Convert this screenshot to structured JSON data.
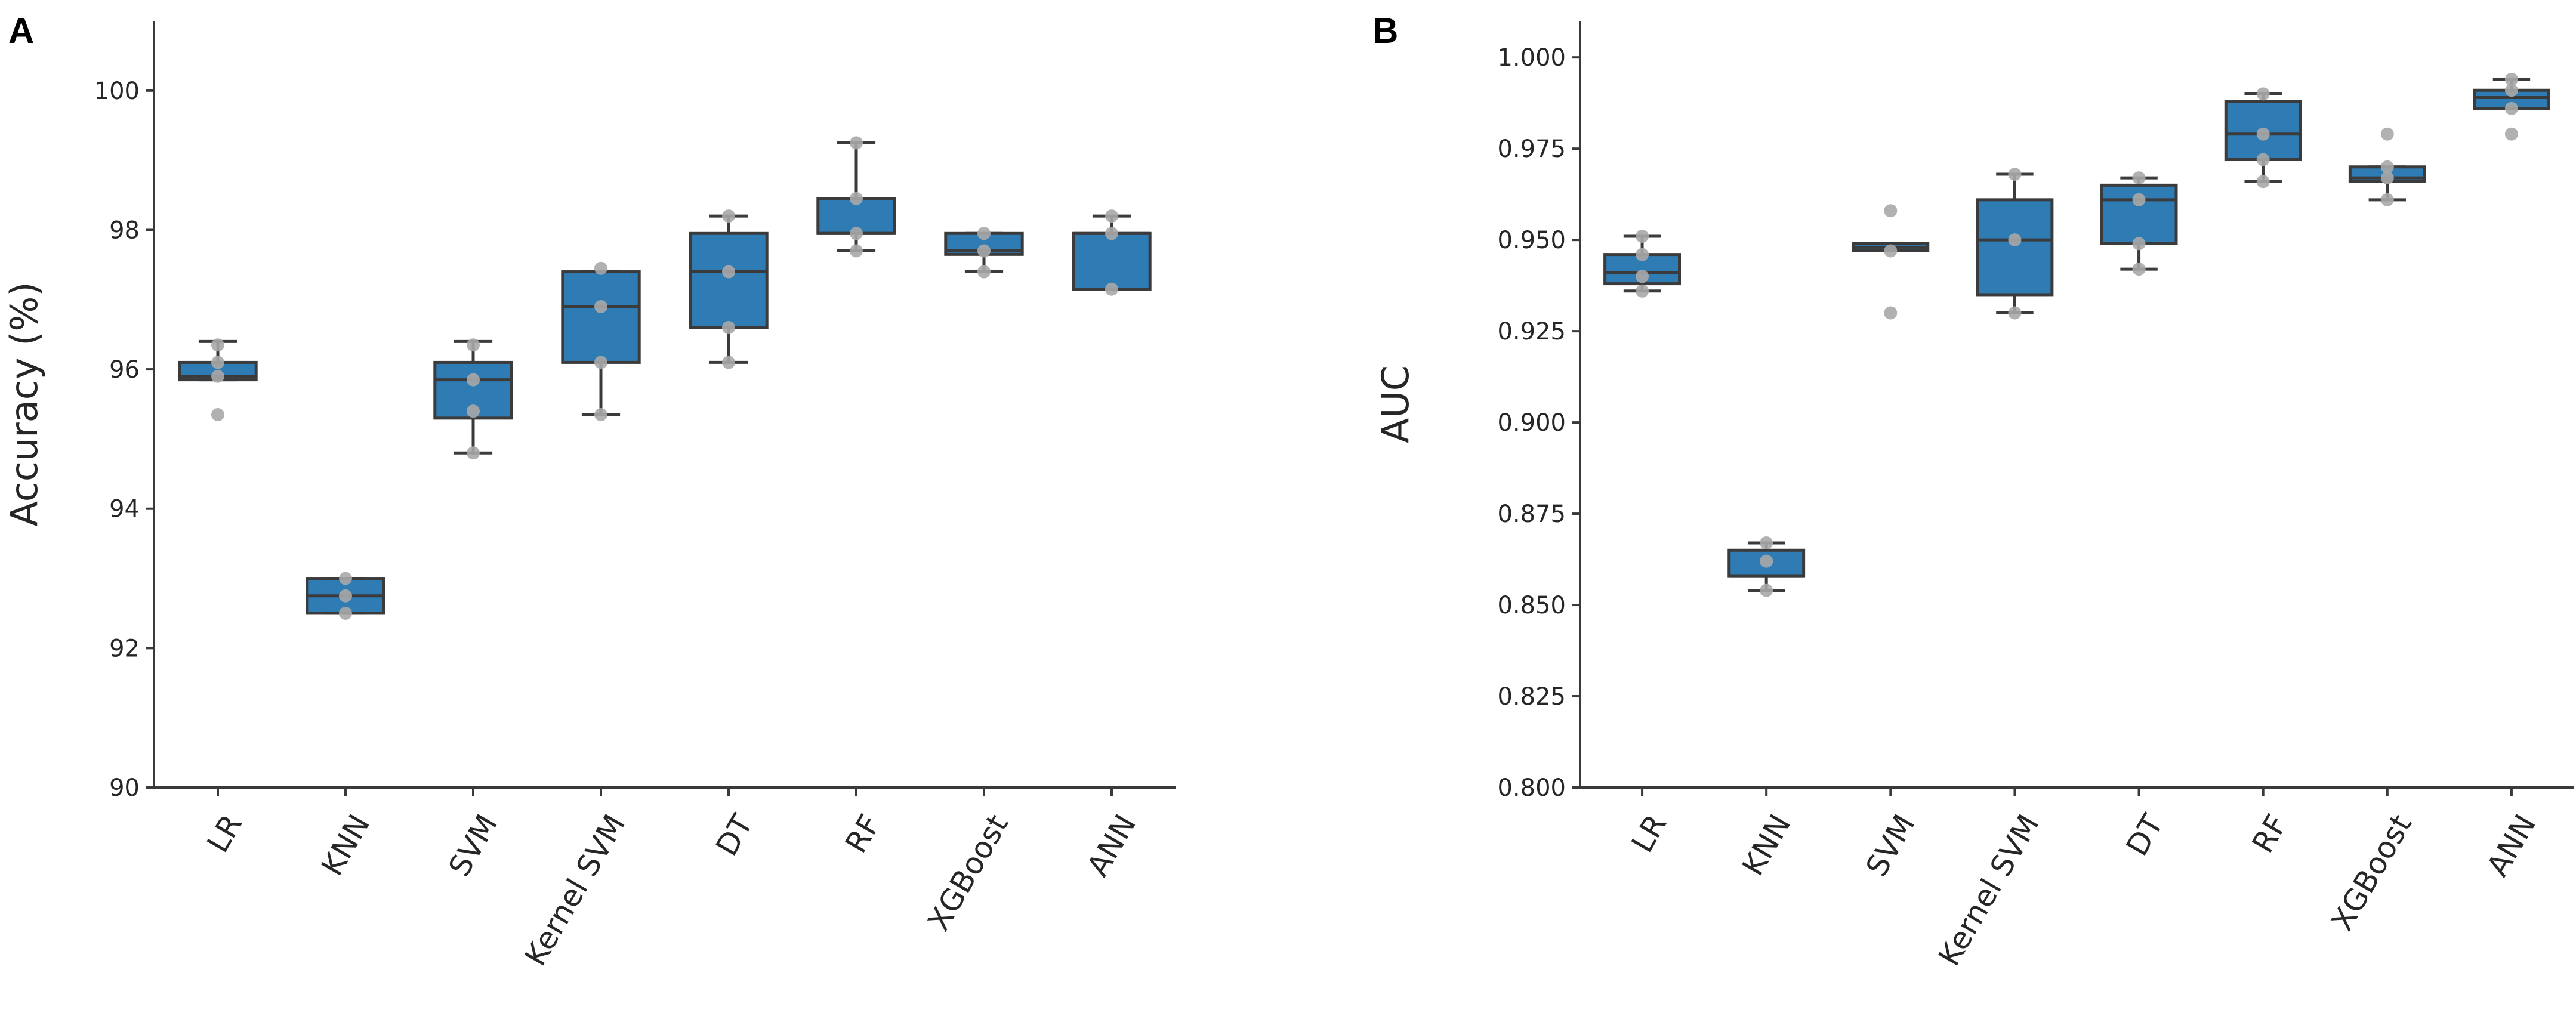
{
  "figure": {
    "colors": {
      "box": "#2f7bb4",
      "line": "#3b3b3b",
      "point": "#a9a9a9"
    }
  },
  "chart_data": [
    {
      "panel_label": "A",
      "type": "box",
      "ylabel": "Accuracy (%)",
      "xlabel": "",
      "ylim": [
        90,
        101
      ],
      "yticks": [
        90,
        92,
        94,
        96,
        98,
        100
      ],
      "categories": [
        "LR",
        "KNN",
        "SVM",
        "Kernel SVM",
        "DT",
        "RF",
        "XGBoost",
        "ANN"
      ],
      "boxes": [
        {
          "whislo": 95.85,
          "q1": 95.85,
          "med": 95.9,
          "q3": 96.1,
          "whishi": 96.4,
          "points": [
            95.35,
            95.9,
            96.1,
            96.35
          ]
        },
        {
          "whislo": 92.5,
          "q1": 92.5,
          "med": 92.75,
          "q3": 93.0,
          "whishi": 93.0,
          "points": [
            92.5,
            92.75,
            93.0
          ]
        },
        {
          "whislo": 94.8,
          "q1": 95.3,
          "med": 95.85,
          "q3": 96.1,
          "whishi": 96.4,
          "points": [
            94.8,
            95.4,
            95.85,
            96.35
          ]
        },
        {
          "whislo": 95.35,
          "q1": 96.1,
          "med": 96.9,
          "q3": 97.4,
          "whishi": 97.4,
          "points": [
            95.35,
            96.1,
            96.9,
            97.45
          ]
        },
        {
          "whislo": 96.1,
          "q1": 96.6,
          "med": 97.4,
          "q3": 97.95,
          "whishi": 98.2,
          "points": [
            96.1,
            96.6,
            97.4,
            98.2
          ]
        },
        {
          "whislo": 97.7,
          "q1": 97.95,
          "med": 97.95,
          "q3": 98.45,
          "whishi": 99.25,
          "points": [
            97.7,
            97.95,
            98.45,
            99.25
          ]
        },
        {
          "whislo": 97.4,
          "q1": 97.65,
          "med": 97.7,
          "q3": 97.95,
          "whishi": 97.95,
          "points": [
            97.4,
            97.7,
            97.95
          ]
        },
        {
          "whislo": 97.15,
          "q1": 97.15,
          "med": 97.95,
          "q3": 97.95,
          "whishi": 98.2,
          "points": [
            97.15,
            97.95,
            98.2
          ]
        }
      ]
    },
    {
      "panel_label": "B",
      "type": "box",
      "ylabel": "AUC",
      "xlabel": "",
      "ylim": [
        0.8,
        1.01
      ],
      "yticks": [
        0.8,
        0.825,
        0.85,
        0.875,
        0.9,
        0.925,
        0.95,
        0.975,
        1.0
      ],
      "ytick_labels": [
        "0.800",
        "0.825",
        "0.850",
        "0.875",
        "0.900",
        "0.925",
        "0.950",
        "0.975",
        "1.000"
      ],
      "categories": [
        "LR",
        "KNN",
        "SVM",
        "Kernel SVM",
        "DT",
        "RF",
        "XGBoost",
        "ANN"
      ],
      "boxes": [
        {
          "whislo": 0.936,
          "q1": 0.938,
          "med": 0.941,
          "q3": 0.946,
          "whishi": 0.951,
          "points": [
            0.936,
            0.94,
            0.946,
            0.951
          ]
        },
        {
          "whislo": 0.854,
          "q1": 0.858,
          "med": 0.858,
          "q3": 0.865,
          "whishi": 0.867,
          "points": [
            0.854,
            0.862,
            0.867
          ]
        },
        {
          "whislo": 0.947,
          "q1": 0.947,
          "med": 0.948,
          "q3": 0.949,
          "whishi": 0.949,
          "points": [
            0.93,
            0.947,
            0.958
          ]
        },
        {
          "whislo": 0.93,
          "q1": 0.935,
          "med": 0.95,
          "q3": 0.961,
          "whishi": 0.968,
          "points": [
            0.93,
            0.95,
            0.968
          ]
        },
        {
          "whislo": 0.942,
          "q1": 0.949,
          "med": 0.961,
          "q3": 0.965,
          "whishi": 0.967,
          "points": [
            0.942,
            0.949,
            0.961,
            0.967
          ]
        },
        {
          "whislo": 0.966,
          "q1": 0.972,
          "med": 0.979,
          "q3": 0.988,
          "whishi": 0.99,
          "points": [
            0.966,
            0.972,
            0.979,
            0.99
          ]
        },
        {
          "whislo": 0.961,
          "q1": 0.966,
          "med": 0.967,
          "q3": 0.97,
          "whishi": 0.97,
          "points": [
            0.961,
            0.967,
            0.97,
            0.979
          ]
        },
        {
          "whislo": 0.986,
          "q1": 0.986,
          "med": 0.989,
          "q3": 0.991,
          "whishi": 0.994,
          "points": [
            0.979,
            0.986,
            0.991,
            0.994
          ]
        }
      ]
    }
  ]
}
